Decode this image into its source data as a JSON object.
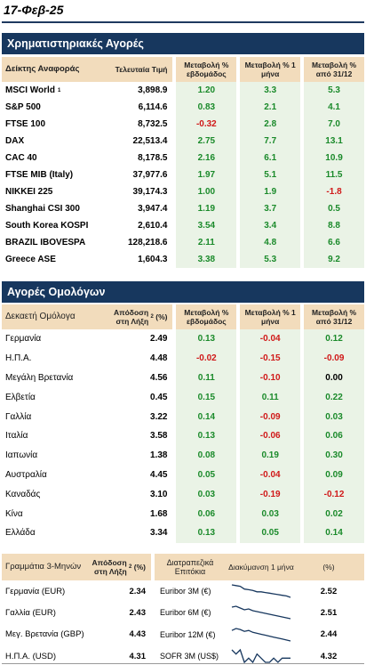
{
  "date": "17-Φεβ-25",
  "equities": {
    "title": "Χρηματιστηριακές Αγορές",
    "headers": {
      "name": "Δείκτης Αναφοράς",
      "price": "Τελευταία Τιμή",
      "week": "Μεταβολή % εβδομάδος",
      "month": "Μεταβολή % 1 μήνα",
      "ytd": "Μεταβολή % από 31/12"
    },
    "rows": [
      {
        "name": "MSCI World",
        "sup": "1",
        "price": "3,898.9",
        "week": "1.20",
        "month": "3.3",
        "ytd": "5.3"
      },
      {
        "name": "S&P 500",
        "sup": "",
        "price": "6,114.6",
        "week": "0.83",
        "month": "2.1",
        "ytd": "4.1"
      },
      {
        "name": "FTSE 100",
        "sup": "",
        "price": "8,732.5",
        "week": "-0.32",
        "month": "2.8",
        "ytd": "7.0"
      },
      {
        "name": "DAX",
        "sup": "",
        "price": "22,513.4",
        "week": "2.75",
        "month": "7.7",
        "ytd": "13.1"
      },
      {
        "name": "CAC 40",
        "sup": "",
        "price": "8,178.5",
        "week": "2.16",
        "month": "6.1",
        "ytd": "10.9"
      },
      {
        "name": "FTSE MIB (Italy)",
        "sup": "",
        "price": "37,977.6",
        "week": "1.97",
        "month": "5.1",
        "ytd": "11.5"
      },
      {
        "name": "NIKKEI 225",
        "sup": "",
        "price": "39,174.3",
        "week": "1.00",
        "month": "1.9",
        "ytd": "-1.8"
      },
      {
        "name": "Shanghai CSI 300",
        "sup": "",
        "price": "3,947.4",
        "week": "1.19",
        "month": "3.7",
        "ytd": "0.5"
      },
      {
        "name": "South Korea KOSPI",
        "sup": "",
        "price": "2,610.4",
        "week": "3.54",
        "month": "3.4",
        "ytd": "8.8"
      },
      {
        "name": "BRAZIL IBOVESPA",
        "sup": "",
        "price": "128,218.6",
        "week": "2.11",
        "month": "4.8",
        "ytd": "6.6"
      },
      {
        "name": "Greece ASE",
        "sup": "",
        "price": "1,604.3",
        "week": "3.38",
        "month": "5.3",
        "ytd": "9.2"
      }
    ]
  },
  "bonds": {
    "title": "Αγορές Ομολόγων",
    "headers": {
      "name": "Δεκαετή Ομόλογα",
      "yield": "Απόδοση στη Λήξη",
      "yield_sup": "2",
      "yield_unit": "(%)",
      "week": "Μεταβολή % εβδομάδος",
      "month": "Μεταβολή % 1 μήνα",
      "ytd": "Μεταβολή % από 31/12"
    },
    "rows": [
      {
        "name": "Γερμανία",
        "yield": "2.49",
        "week": "0.13",
        "month": "-0.04",
        "ytd": "0.12"
      },
      {
        "name": "Η.Π.Α.",
        "yield": "4.48",
        "week": "-0.02",
        "month": "-0.15",
        "ytd": "-0.09"
      },
      {
        "name": "Μεγάλη Βρετανία",
        "yield": "4.56",
        "week": "0.11",
        "month": "-0.10",
        "ytd": "0.00"
      },
      {
        "name": "Ελβετία",
        "yield": "0.45",
        "week": "0.15",
        "month": "0.11",
        "ytd": "0.22"
      },
      {
        "name": "Γαλλία",
        "yield": "3.22",
        "week": "0.14",
        "month": "-0.09",
        "ytd": "0.03"
      },
      {
        "name": "Ιταλία",
        "yield": "3.58",
        "week": "0.13",
        "month": "-0.06",
        "ytd": "0.06"
      },
      {
        "name": "Ιαπωνία",
        "yield": "1.38",
        "week": "0.08",
        "month": "0.19",
        "ytd": "0.30"
      },
      {
        "name": "Αυστραλία",
        "yield": "4.45",
        "week": "0.05",
        "month": "-0.04",
        "ytd": "0.09"
      },
      {
        "name": "Καναδάς",
        "yield": "3.10",
        "week": "0.03",
        "month": "-0.19",
        "ytd": "-0.12"
      },
      {
        "name": "Κίνα",
        "yield": "1.68",
        "week": "0.06",
        "month": "0.03",
        "ytd": "0.02"
      },
      {
        "name": "Ελλάδα",
        "yield": "3.34",
        "week": "0.13",
        "month": "0.05",
        "ytd": "0.14"
      }
    ]
  },
  "money_market": {
    "headers": {
      "name": "Γραμμάτια 3-Μηνών",
      "yield": "Απόδοση στη Λήξη",
      "yield_sup": "2",
      "yield_unit": "(%)",
      "interbank": "Διατραπεζικά Επιτόκια",
      "fluct": "Διακύμανση 1 μήνα",
      "pct": "(%)"
    },
    "rows": [
      {
        "name": "Γερμανία (EUR)",
        "yield": "2.34",
        "rate": "Euribor 3M (€)",
        "value": "2.52",
        "spark": [
          2.7,
          2.69,
          2.68,
          2.64,
          2.63,
          2.62,
          2.6,
          2.6,
          2.59,
          2.58,
          2.57,
          2.56,
          2.55,
          2.54,
          2.52
        ]
      },
      {
        "name": "Γαλλία (EUR)",
        "yield": "2.43",
        "rate": "Euribor 6M (€)",
        "value": "2.51",
        "spark": [
          2.64,
          2.65,
          2.63,
          2.61,
          2.62,
          2.6,
          2.59,
          2.58,
          2.57,
          2.56,
          2.55,
          2.54,
          2.53,
          2.52,
          2.51
        ]
      },
      {
        "name": "Μεγ. Βρετανία (GBP)",
        "yield": "4.43",
        "rate": "Euribor 12M (€)",
        "value": "2.44",
        "spark": [
          2.55,
          2.57,
          2.56,
          2.54,
          2.55,
          2.53,
          2.52,
          2.51,
          2.5,
          2.49,
          2.48,
          2.47,
          2.46,
          2.45,
          2.44
        ]
      },
      {
        "name": "Η.Π.Α. (USD)",
        "yield": "4.31",
        "rate": "SOFR 3M (US$)",
        "value": "4.32",
        "spark": [
          4.34,
          4.33,
          4.34,
          4.31,
          4.32,
          4.31,
          4.33,
          4.32,
          4.31,
          4.31,
          4.32,
          4.31,
          4.32,
          4.32,
          4.32
        ]
      }
    ]
  },
  "colors": {
    "navy": "#17375e",
    "header_tan": "#f2dcbc",
    "tint": "#eaf3e6",
    "positive": "#1a8a2a",
    "negative": "#d01818"
  }
}
